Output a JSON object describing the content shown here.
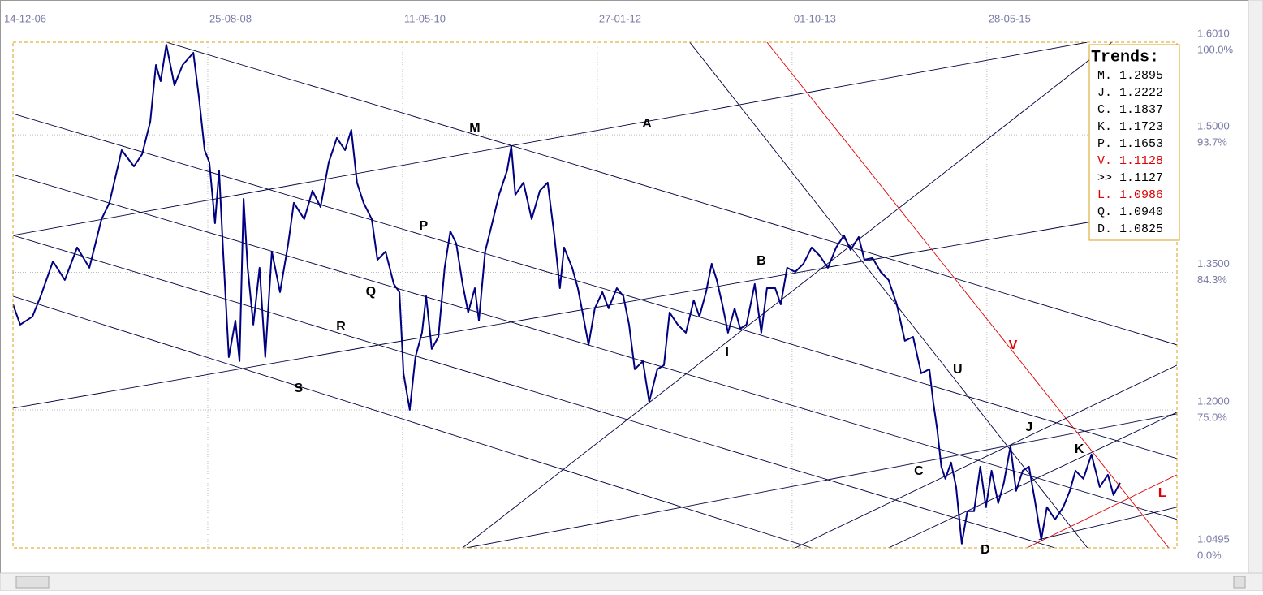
{
  "chart_data": {
    "type": "line",
    "color": "#000080",
    "xlim": [
      0,
      3705
    ],
    "ylim": [
      1.0495,
      1.601
    ],
    "xticks": [
      {
        "value": 0,
        "label": "14-12-06"
      },
      {
        "value": 620,
        "label": "25-08-08"
      },
      {
        "value": 1240,
        "label": "11-05-10"
      },
      {
        "value": 1860,
        "label": "27-01-12"
      },
      {
        "value": 2480,
        "label": "01-10-13"
      },
      {
        "value": 3100,
        "label": "28-05-15"
      }
    ],
    "yticks": [
      {
        "value": 1.601,
        "label": "1.6010"
      },
      {
        "value": 1.5,
        "label": "1.5000"
      },
      {
        "value": 1.35,
        "label": "1.3500"
      },
      {
        "value": 1.2,
        "label": "1.2000"
      },
      1.0495
    ],
    "ypct_labels": [
      {
        "value": 1.601,
        "label": "100.0%"
      },
      {
        "value": 1.5,
        "label": "93.7%"
      },
      {
        "value": 1.35,
        "label": "84.3%"
      },
      {
        "value": 1.2,
        "label": "75.0%"
      },
      {
        "value": 1.0495,
        "label": "0.0%"
      }
    ],
    "grid": true,
    "x": [
      0,
      23,
      62,
      88,
      127,
      165,
      204,
      243,
      282,
      307,
      346,
      385,
      411,
      437,
      455,
      470,
      488,
      514,
      540,
      574,
      592,
      610,
      625,
      643,
      656,
      669,
      687,
      708,
      721,
      734,
      747,
      765,
      785,
      803,
      824,
      850,
      876,
      894,
      927,
      953,
      979,
      1005,
      1031,
      1057,
      1077,
      1095,
      1116,
      1142,
      1160,
      1186,
      1212,
      1230,
      1243,
      1263,
      1281,
      1302,
      1315,
      1333,
      1354,
      1374,
      1392,
      1411,
      1431,
      1449,
      1470,
      1483,
      1503,
      1522,
      1547,
      1573,
      1586,
      1599,
      1625,
      1651,
      1677,
      1702,
      1723,
      1741,
      1754,
      1780,
      1798,
      1813,
      1832,
      1852,
      1876,
      1896,
      1922,
      1943,
      1961,
      1979,
      2005,
      2025,
      2051,
      2072,
      2090,
      2116,
      2142,
      2167,
      2185,
      2206,
      2224,
      2240,
      2258,
      2276,
      2297,
      2315,
      2335,
      2361,
      2382,
      2400,
      2426,
      2444,
      2464,
      2490,
      2516,
      2542,
      2568,
      2594,
      2620,
      2645,
      2666,
      2692,
      2710,
      2736,
      2762,
      2787,
      2813,
      2839,
      2865,
      2891,
      2917,
      2929,
      2942,
      2955,
      2968,
      2986,
      3002,
      3020,
      3038,
      3059,
      3079,
      3097,
      3115,
      3136,
      3154,
      3175,
      3193,
      3214,
      3234,
      3252,
      3273,
      3291,
      3317,
      3343,
      3364,
      3382,
      3407,
      3433,
      3459,
      3485,
      3503,
      3524
    ],
    "values": [
      1.3151,
      1.293,
      1.3019,
      1.324,
      1.362,
      1.3417,
      1.3771,
      1.355,
      1.4081,
      1.4258,
      1.4833,
      1.4656,
      1.4789,
      1.5143,
      1.5762,
      1.5585,
      1.5983,
      1.5541,
      1.5762,
      1.5895,
      1.5408,
      1.4833,
      1.47,
      1.4036,
      1.4612,
      1.3727,
      1.2576,
      1.2974,
      1.2532,
      1.4302,
      1.355,
      1.293,
      1.355,
      1.2576,
      1.3727,
      1.3284,
      1.3815,
      1.4258,
      1.4081,
      1.439,
      1.4213,
      1.47,
      1.4966,
      1.4833,
      1.5054,
      1.4479,
      1.4258,
      1.4081,
      1.3638,
      1.3727,
      1.3373,
      1.3284,
      1.2399,
      1.2001,
      1.2576,
      1.2842,
      1.324,
      1.2665,
      1.2797,
      1.355,
      1.3948,
      1.3815,
      1.3373,
      1.3063,
      1.3328,
      1.2974,
      1.3727,
      1.3992,
      1.4346,
      1.4612,
      1.4877,
      1.4346,
      1.4479,
      1.4081,
      1.439,
      1.4479,
      1.3904,
      1.3328,
      1.3771,
      1.355,
      1.3328,
      1.3063,
      1.2709,
      1.3107,
      1.3284,
      1.3107,
      1.3328,
      1.324,
      1.293,
      1.2443,
      1.2532,
      1.2089,
      1.2443,
      1.2488,
      1.3063,
      1.293,
      1.2842,
      1.3196,
      1.3019,
      1.3284,
      1.3594,
      1.3417,
      1.3151,
      1.2842,
      1.3107,
      1.2886,
      1.293,
      1.3373,
      1.2842,
      1.3328,
      1.3328,
      1.3151,
      1.355,
      1.3505,
      1.3594,
      1.3771,
      1.3682,
      1.355,
      1.3771,
      1.3904,
      1.3744,
      1.3886,
      1.3638,
      1.3656,
      1.3505,
      1.3417,
      1.3151,
      1.2753,
      1.2797,
      1.2399,
      1.2443,
      1.2089,
      1.178,
      1.1381,
      1.1249,
      1.1426,
      1.116,
      1.0541,
      1.0895,
      1.0895,
      1.1381,
      1.0939,
      1.1337,
      1.0983,
      1.1204,
      1.1603,
      1.1116,
      1.1337,
      1.1381,
      1.1027,
      1.0585,
      1.0939,
      1.0806,
      1.0939,
      1.1116,
      1.1337,
      1.1249,
      1.1514,
      1.116,
      1.1293,
      1.1072,
      1.1204
    ],
    "trendlines": [
      {
        "x": [
          488,
          3705
        ],
        "y": [
          1.601,
          1.2709
        ],
        "color": "#000040"
      },
      {
        "x": [
          0,
          3420
        ],
        "y": [
          1.3904,
          1.601
        ],
        "color": "#000040"
      },
      {
        "x": [
          0,
          3705
        ],
        "y": [
          1.5231,
          1.147
        ],
        "color": "#000040"
      },
      {
        "x": [
          0,
          3705
        ],
        "y": [
          1.4567,
          1.0806
        ],
        "color": "#000040"
      },
      {
        "x": [
          0,
          2542
        ],
        "y": [
          1.324,
          1.0495
        ],
        "color": "#000040"
      },
      {
        "x": [
          0,
          3317
        ],
        "y": [
          1.3904,
          1.0495
        ],
        "color": "#000040"
      },
      {
        "x": [
          0,
          3705
        ],
        "y": [
          1.2019,
          1.4213
        ],
        "color": "#000040"
      },
      {
        "x": [
          1431,
          3498
        ],
        "y": [
          1.0495,
          1.601
        ],
        "color": "#000040"
      },
      {
        "x": [
          2154,
          3420
        ],
        "y": [
          1.601,
          1.0495
        ],
        "color": "#000040"
      },
      {
        "x": [
          2400,
          3679
        ],
        "y": [
          1.601,
          1.0495
        ],
        "color": "#e00000"
      },
      {
        "x": [
          3227,
          3705
        ],
        "y": [
          1.0495,
          1.1293
        ],
        "color": "#e00000"
      },
      {
        "x": [
          2490,
          3705
        ],
        "y": [
          1.0495,
          1.2488
        ],
        "color": "#000040"
      },
      {
        "x": [
          2787,
          3705
        ],
        "y": [
          1.0495,
          1.1974
        ],
        "color": "#000040"
      },
      {
        "x": [
          1444,
          3705
        ],
        "y": [
          1.0495,
          1.1957
        ],
        "color": "#000040"
      },
      {
        "x": [
          3265,
          3705
        ],
        "y": [
          1.0585,
          1.0939
        ],
        "color": "#000040"
      }
    ],
    "annotations": [
      {
        "text": "M",
        "x": 1470,
        "y": 1.5072,
        "color": "#000000"
      },
      {
        "text": "A",
        "x": 2018,
        "y": 1.5116,
        "color": "#000000"
      },
      {
        "text": "P",
        "x": 1307,
        "y": 1.4001,
        "color": "#000000"
      },
      {
        "text": "Q",
        "x": 1139,
        "y": 1.3284,
        "color": "#000000"
      },
      {
        "text": "R",
        "x": 1044,
        "y": 1.2904,
        "color": "#000000"
      },
      {
        "text": "S",
        "x": 909,
        "y": 1.2231,
        "color": "#000000"
      },
      {
        "text": "B",
        "x": 2382,
        "y": 1.362,
        "color": "#000000"
      },
      {
        "text": "I",
        "x": 2273,
        "y": 1.262,
        "color": "#000000"
      },
      {
        "text": "U",
        "x": 3007,
        "y": 1.2435,
        "color": "#000000"
      },
      {
        "text": "V",
        "x": 3183,
        "y": 1.27,
        "color": "#e00000"
      },
      {
        "text": "J",
        "x": 3234,
        "y": 1.1806,
        "color": "#000000"
      },
      {
        "text": "C",
        "x": 2883,
        "y": 1.1328,
        "color": "#000000"
      },
      {
        "text": "K",
        "x": 3394,
        "y": 1.1567,
        "color": "#000000"
      },
      {
        "text": "L",
        "x": 3658,
        "y": 1.1089,
        "color": "#e00000"
      },
      {
        "text": "D",
        "x": 3095,
        "y": 1.047,
        "color": "#000000"
      }
    ],
    "legend_box": {
      "title": "Trends:",
      "entries": [
        {
          "text": "M. 1.2895",
          "color": "#000000"
        },
        {
          "text": "J. 1.2222",
          "color": "#000000"
        },
        {
          "text": "C. 1.1837",
          "color": "#000000"
        },
        {
          "text": "K. 1.1723",
          "color": "#000000"
        },
        {
          "text": "P. 1.1653",
          "color": "#000000"
        },
        {
          "text": "V. 1.1128",
          "color": "#e00000"
        },
        {
          "text": ">> 1.1127",
          "color": "#000000"
        },
        {
          "text": "L. 1.0986",
          "color": "#e00000"
        },
        {
          "text": "Q. 1.0940",
          "color": "#000000"
        },
        {
          "text": "D. 1.0825",
          "color": "#000000"
        }
      ]
    }
  }
}
